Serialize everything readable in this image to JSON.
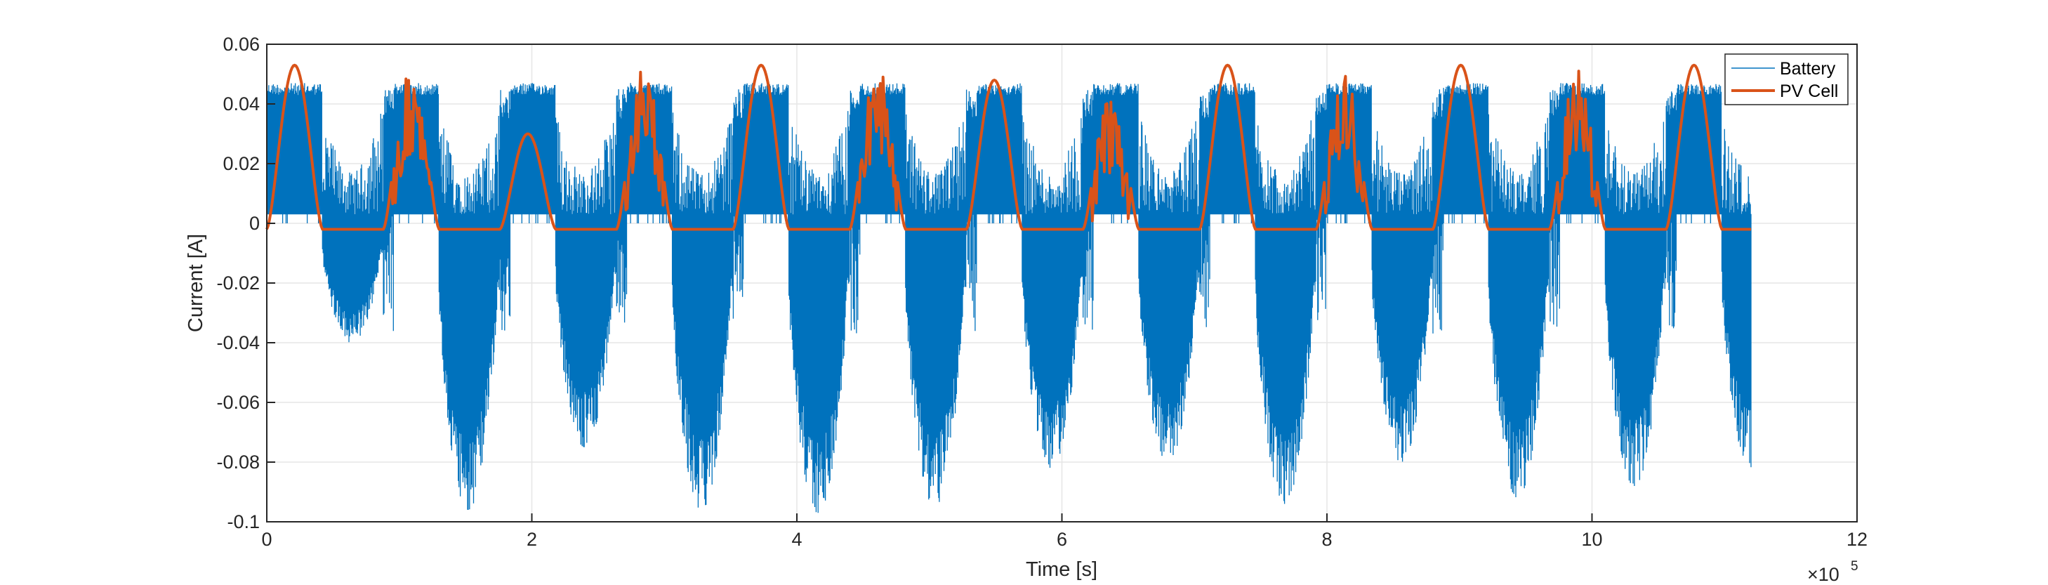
{
  "chart_data": {
    "type": "line",
    "xlabel": "Time [s]",
    "ylabel": "Current [A]",
    "xlim": [
      0,
      1200000
    ],
    "ylim": [
      -0.1,
      0.06
    ],
    "x_ticks": [
      0,
      200000,
      400000,
      600000,
      800000,
      1000000,
      1200000
    ],
    "x_tick_labels": [
      "0",
      "2",
      "4",
      "6",
      "8",
      "10",
      "12"
    ],
    "x_exponent": {
      "base": "×10",
      "power": "5"
    },
    "y_ticks": [
      -0.1,
      -0.08,
      -0.06,
      -0.04,
      -0.02,
      0,
      0.02,
      0.04,
      0.06
    ],
    "y_tick_labels": [
      "-0.1",
      "-0.08",
      "-0.06",
      "-0.04",
      "-0.02",
      "0",
      "0.02",
      "0.04",
      "0.06"
    ],
    "grid": true,
    "legend_position": "top-right",
    "days": [
      {
        "start": 0,
        "pv_peak": 0.053,
        "bat_dip": -0.04
      },
      {
        "start": 88000,
        "pv_peak": 0.053,
        "bat_dip": -0.096
      },
      {
        "start": 176000,
        "pv_peak": 0.03,
        "bat_dip": -0.075
      },
      {
        "start": 264000,
        "pv_peak": 0.053,
        "bat_dip": -0.096
      },
      {
        "start": 352000,
        "pv_peak": 0.053,
        "bat_dip": -0.097
      },
      {
        "start": 440000,
        "pv_peak": 0.053,
        "bat_dip": -0.095
      },
      {
        "start": 528000,
        "pv_peak": 0.048,
        "bat_dip": -0.082
      },
      {
        "start": 616000,
        "pv_peak": 0.046,
        "bat_dip": -0.08
      },
      {
        "start": 704000,
        "pv_peak": 0.053,
        "bat_dip": -0.094
      },
      {
        "start": 792000,
        "pv_peak": 0.053,
        "bat_dip": -0.08
      },
      {
        "start": 880000,
        "pv_peak": 0.053,
        "bat_dip": -0.092
      },
      {
        "start": 968000,
        "pv_peak": 0.053,
        "bat_dip": -0.088
      },
      {
        "start": 1056000,
        "pv_peak": 0.053,
        "bat_dip": -0.083
      }
    ],
    "series": [
      {
        "name": "Battery",
        "color": "#0072BD",
        "charge_level": 0.047,
        "charge_floor": 0.003,
        "x_end": 1120000
      },
      {
        "name": "PV Cell",
        "color": "#D95319",
        "night_level": -0.002,
        "x_end": 1120000
      }
    ]
  }
}
